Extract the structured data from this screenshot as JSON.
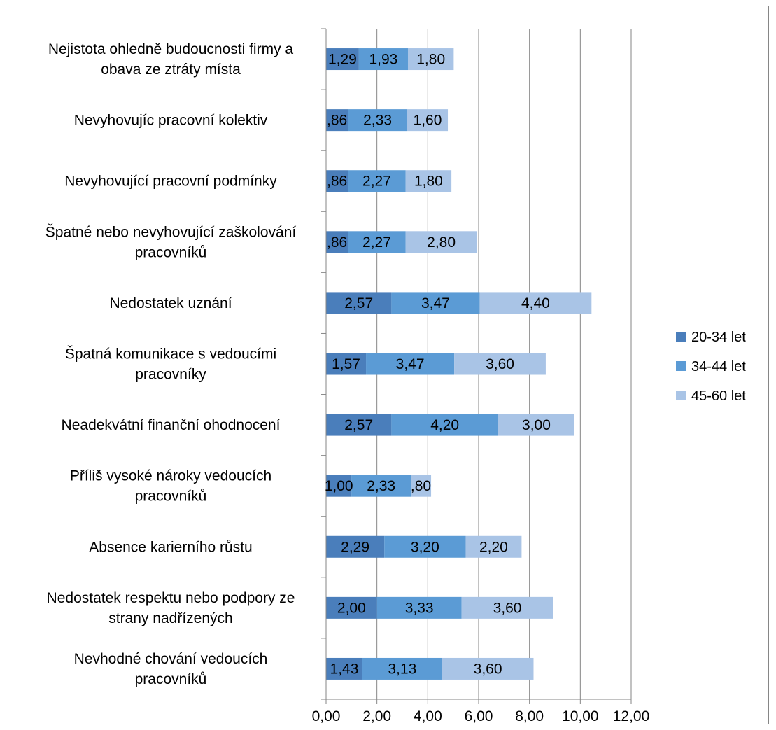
{
  "chart_data": {
    "type": "bar",
    "orientation": "horizontal",
    "stacked": true,
    "title": "",
    "xlabel": "",
    "ylabel": "",
    "xlim": [
      0,
      12
    ],
    "x_ticks": [
      0,
      2,
      4,
      6,
      8,
      10,
      12
    ],
    "x_tick_labels": [
      "0,00",
      "2,00",
      "4,00",
      "6,00",
      "8,00",
      "10,00",
      "12,00"
    ],
    "grid": "vertical",
    "legend_position": "right",
    "categories": [
      [
        "Nejistota ohledně budoucnosti firmy a",
        "obava ze ztráty místa"
      ],
      [
        "Nevyhovujíc pracovní kolektiv"
      ],
      [
        "Nevyhovující pracovní podmínky"
      ],
      [
        "Špatné nebo nevyhovující zaškolování",
        "pracovníků"
      ],
      [
        "Nedostatek uznání"
      ],
      [
        "Špatná komunikace s vedoucími",
        "pracovníky"
      ],
      [
        "Neadekvátní finanční ohodnocení"
      ],
      [
        "Příliš vysoké nároky vedoucích",
        "pracovníků"
      ],
      [
        "Absence karierního růstu"
      ],
      [
        "Nedostatek respektu nebo podpory ze",
        "strany nadřízených"
      ],
      [
        "Nevhodné chování vedoucích",
        "pracovníků"
      ]
    ],
    "series": [
      {
        "name": "20-34 let",
        "color": "#4a7ebb",
        "values": [
          1.29,
          0.86,
          0.86,
          0.86,
          2.57,
          1.57,
          2.57,
          1.0,
          2.29,
          2.0,
          1.43
        ],
        "labels": [
          "1,29",
          ",86",
          ",86",
          ",86",
          "2,57",
          "1,57",
          "2,57",
          "1,00",
          "2,29",
          "2,00",
          "1,43"
        ]
      },
      {
        "name": "34-44 let",
        "color": "#5b9bd5",
        "values": [
          1.93,
          2.33,
          2.27,
          2.27,
          3.47,
          3.47,
          4.2,
          2.33,
          3.2,
          3.33,
          3.13
        ],
        "labels": [
          "1,93",
          "2,33",
          "2,27",
          "2,27",
          "3,47",
          "3,47",
          "4,20",
          "2,33",
          "3,20",
          "3,33",
          "3,13"
        ]
      },
      {
        "name": "45-60 let",
        "color": "#a9c4e6",
        "values": [
          1.8,
          1.6,
          1.8,
          2.8,
          4.4,
          3.6,
          3.0,
          0.8,
          2.2,
          3.6,
          3.6
        ],
        "labels": [
          "1,80",
          "1,60",
          "1,80",
          "2,80",
          "4,40",
          "3,60",
          "3,00",
          ",80",
          "2,20",
          "3,60",
          "3,60"
        ]
      }
    ]
  }
}
